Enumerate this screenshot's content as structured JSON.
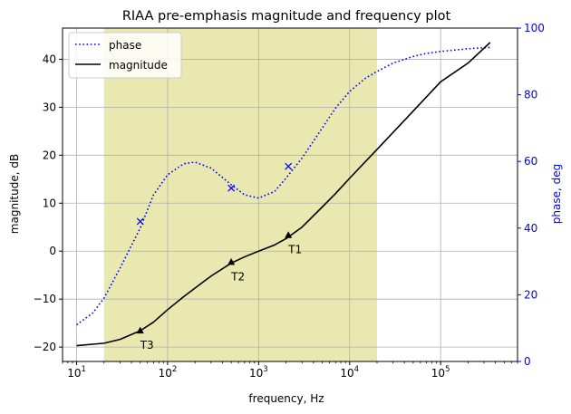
{
  "chart_data": {
    "type": "line",
    "title": "RIAA pre-emphasis magnitude and frequency plot",
    "xlabel": "frequency, Hz",
    "ylabel_left": "magnitude, dB",
    "ylabel_right": "phase, deg",
    "x_scale": "log",
    "xlim": [
      7,
      700000
    ],
    "ylim_left": [
      -23,
      46.5
    ],
    "ylim_right": [
      0,
      100
    ],
    "x_ticks": [
      {
        "value": 10,
        "base": "10",
        "exp": "1"
      },
      {
        "value": 100,
        "base": "10",
        "exp": "2"
      },
      {
        "value": 1000,
        "base": "10",
        "exp": "3"
      },
      {
        "value": 10000,
        "base": "10",
        "exp": "4"
      },
      {
        "value": 100000,
        "base": "10",
        "exp": "5"
      }
    ],
    "y_ticks_left": [
      -20,
      -10,
      0,
      10,
      20,
      30,
      40
    ],
    "y_ticks_right": [
      0,
      20,
      40,
      60,
      80,
      100
    ],
    "grid": true,
    "legend_position": "top-left",
    "audio_band": {
      "from": 20,
      "to": 20000,
      "color": "#e8e8b0"
    },
    "colors": {
      "phase": "#0000ff",
      "magnitude": "#000000",
      "right_axis": "#0000ff"
    },
    "series": [
      {
        "name": "phase",
        "axis": "right",
        "style": "dotted",
        "x": [
          10,
          15,
          20,
          30,
          50,
          70,
          100,
          150,
          200,
          300,
          500,
          700,
          1000,
          1500,
          2000,
          3000,
          5000,
          7000,
          10000,
          15000,
          20000,
          30000,
          50000,
          70000,
          100000,
          200000,
          350000
        ],
        "y": [
          11,
          14.5,
          19,
          28,
          40,
          50,
          56,
          59.3,
          59.8,
          58,
          53,
          50,
          49,
          51,
          55,
          61,
          70,
          76,
          81,
          85,
          87,
          89.5,
          91.5,
          92.4,
          93,
          93.8,
          94.2
        ]
      },
      {
        "name": "magnitude",
        "axis": "left",
        "style": "solid",
        "x": [
          10,
          20,
          30,
          50,
          70,
          100,
          150,
          200,
          300,
          500,
          700,
          1000,
          1500,
          2000,
          3000,
          5000,
          7000,
          10000,
          20000,
          50000,
          100000,
          200000,
          350000
        ],
        "y": [
          -19.7,
          -19.2,
          -18.4,
          -16.6,
          -14.8,
          -12.2,
          -9.5,
          -7.7,
          -5.2,
          -2.5,
          -1.2,
          0,
          1.3,
          2.6,
          5,
          9.2,
          12,
          15.2,
          21.2,
          29.2,
          35.3,
          39.2,
          43.5
        ]
      }
    ],
    "phase_markers": [
      {
        "x": 50,
        "y": 42
      },
      {
        "x": 500,
        "y": 52
      },
      {
        "x": 2122,
        "y": 58.5
      }
    ],
    "annotations": [
      {
        "label": "T1",
        "x": 2122,
        "y": 3.3
      },
      {
        "label": "T2",
        "x": 500,
        "y": -2.3
      },
      {
        "label": "T3",
        "x": 50,
        "y": -16.6
      }
    ]
  }
}
